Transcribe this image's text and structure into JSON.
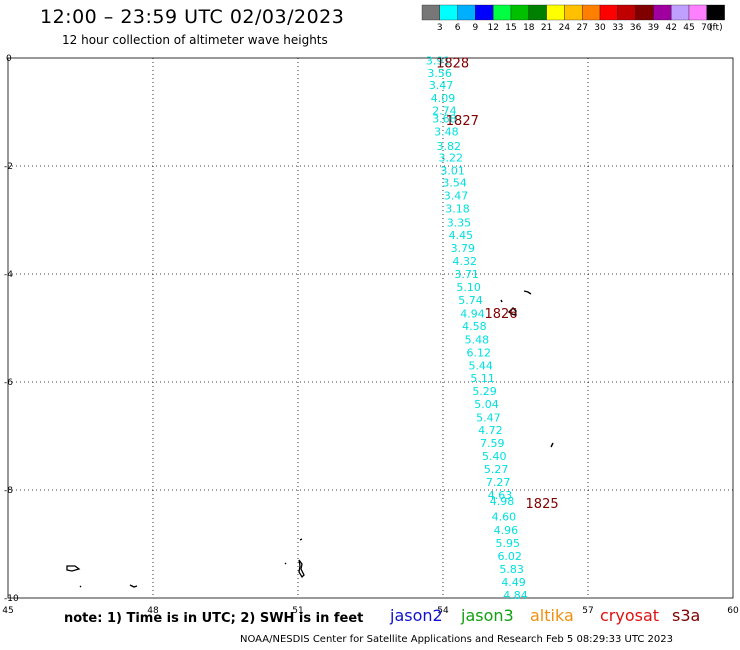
{
  "title": "12:00 – 23:59 UTC 02/03/2023",
  "subtitle": "12 hour collection of altimeter wave heights",
  "note": "note:  1) Time is in UTC;  2) SWH is in feet",
  "credit": "NOAA/NESDIS Center for Satellite Applications and Research    Feb  5 08:29:33 UTC 2023",
  "satellites": [
    {
      "name": "jason2",
      "color": "#1010d0"
    },
    {
      "name": "jason3",
      "color": "#10a010"
    },
    {
      "name": "altika",
      "color": "#f09010"
    },
    {
      "name": "cryosat",
      "color": "#e01010"
    },
    {
      "name": "s3a",
      "color": "#800000"
    }
  ],
  "colorbar": {
    "labels": [
      "3",
      "6",
      "9",
      "12",
      "15",
      "18",
      "21",
      "24",
      "27",
      "30",
      "33",
      "36",
      "39",
      "42",
      "45",
      "70"
    ],
    "unit": "(ft)",
    "colors": [
      "#777777",
      "#00ffff",
      "#00b0ff",
      "#0000ff",
      "#00ff40",
      "#00c000",
      "#008000",
      "#ffff00",
      "#ffc000",
      "#ff8000",
      "#ff0000",
      "#c00000",
      "#800000",
      "#a000a0",
      "#c0a0ff",
      "#ff80ff",
      "#000000"
    ]
  },
  "chart_data": {
    "type": "scatter",
    "xlim": [
      45,
      60
    ],
    "ylim": [
      -10,
      0
    ],
    "x_ticks": [
      45,
      48,
      51,
      54,
      57,
      60
    ],
    "y_ticks": [
      0,
      -2,
      -4,
      -6,
      -8,
      -10
    ],
    "grid": true,
    "series": [
      {
        "name": "",
        "color": "#00e0e0",
        "points": [
          {
            "x": 53.9,
            "y": -0.05,
            "label": "3.91"
          },
          {
            "x": 53.93,
            "y": -0.28,
            "label": "3.56"
          },
          {
            "x": 53.96,
            "y": -0.5,
            "label": "3.47"
          },
          {
            "x": 54.0,
            "y": -0.74,
            "label": "4.09"
          },
          {
            "x": 54.03,
            "y": -0.97,
            "label": "2.74"
          },
          {
            "x": 54.03,
            "y": -1.12,
            "label": "3.68"
          },
          {
            "x": 54.07,
            "y": -1.36,
            "label": "3.48"
          },
          {
            "x": 54.12,
            "y": -1.63,
            "label": "3.82"
          },
          {
            "x": 54.16,
            "y": -1.84,
            "label": "3.22"
          },
          {
            "x": 54.2,
            "y": -2.08,
            "label": "3.01"
          },
          {
            "x": 54.24,
            "y": -2.31,
            "label": "3.54"
          },
          {
            "x": 54.27,
            "y": -2.55,
            "label": "3.47"
          },
          {
            "x": 54.3,
            "y": -2.79,
            "label": "3.18"
          },
          {
            "x": 54.33,
            "y": -3.05,
            "label": "3.35"
          },
          {
            "x": 54.37,
            "y": -3.28,
            "label": "4.45"
          },
          {
            "x": 54.41,
            "y": -3.52,
            "label": "3.79"
          },
          {
            "x": 54.45,
            "y": -3.76,
            "label": "4.32"
          },
          {
            "x": 54.49,
            "y": -4.0,
            "label": "3.71"
          },
          {
            "x": 54.53,
            "y": -4.24,
            "label": "5.10"
          },
          {
            "x": 54.57,
            "y": -4.48,
            "label": "5.74"
          },
          {
            "x": 54.61,
            "y": -4.73,
            "label": "4.94"
          },
          {
            "x": 54.65,
            "y": -4.96,
            "label": "4.58"
          },
          {
            "x": 54.7,
            "y": -5.21,
            "label": "5.48"
          },
          {
            "x": 54.74,
            "y": -5.45,
            "label": "6.12"
          },
          {
            "x": 54.78,
            "y": -5.69,
            "label": "5.44"
          },
          {
            "x": 54.82,
            "y": -5.93,
            "label": "5.11"
          },
          {
            "x": 54.86,
            "y": -6.17,
            "label": "5.29"
          },
          {
            "x": 54.9,
            "y": -6.41,
            "label": "5.04"
          },
          {
            "x": 54.94,
            "y": -6.66,
            "label": "5.47"
          },
          {
            "x": 54.98,
            "y": -6.89,
            "label": "4.72"
          },
          {
            "x": 55.02,
            "y": -7.13,
            "label": "7.59"
          },
          {
            "x": 55.06,
            "y": -7.37,
            "label": "5.40"
          },
          {
            "x": 55.1,
            "y": -7.61,
            "label": "5.27"
          },
          {
            "x": 55.14,
            "y": -7.85,
            "label": "7.27"
          },
          {
            "x": 55.18,
            "y": -8.09,
            "label": "4.63"
          },
          {
            "x": 55.22,
            "y": -8.2,
            "label": "4.98"
          },
          {
            "x": 55.26,
            "y": -8.49,
            "label": "4.60"
          },
          {
            "x": 55.3,
            "y": -8.74,
            "label": "4.96"
          },
          {
            "x": 55.34,
            "y": -8.98,
            "label": "5.95"
          },
          {
            "x": 55.38,
            "y": -9.22,
            "label": "6.02"
          },
          {
            "x": 55.42,
            "y": -9.46,
            "label": "5.83"
          },
          {
            "x": 55.46,
            "y": -9.7,
            "label": "4.49"
          },
          {
            "x": 55.5,
            "y": -9.94,
            "label": "4.84"
          }
        ]
      }
    ],
    "time_labels": [
      {
        "x": 54.2,
        "y": -0.08,
        "label": "1828",
        "color": "#800000"
      },
      {
        "x": 54.4,
        "y": -1.15,
        "label": "1827",
        "color": "#800000"
      },
      {
        "x": 55.2,
        "y": -4.72,
        "label": "1826",
        "color": "#800000"
      },
      {
        "x": 56.05,
        "y": -8.24,
        "label": "1825",
        "color": "#800000"
      }
    ]
  }
}
